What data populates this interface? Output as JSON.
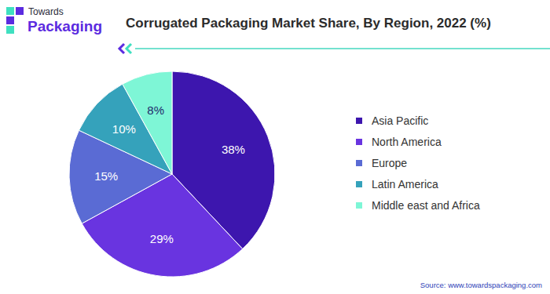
{
  "logo": {
    "line1": "Towards",
    "line2": "Packaging"
  },
  "source": "Source: www.towardspackaging.com",
  "chart_data": {
    "type": "pie",
    "title": "Corrugated Packaging Market Share, By Region, 2022 (%)",
    "categories": [
      "Asia Pacific",
      "North America",
      "Europe",
      "Latin America",
      "Middle east and Africa"
    ],
    "values": [
      38,
      29,
      15,
      10,
      8
    ],
    "value_labels": [
      "38%",
      "29%",
      "15%",
      "10%",
      "8%"
    ],
    "colors": [
      "#3d16ae",
      "#6934e0",
      "#5a6bd4",
      "#35a2bb",
      "#7ef6d6"
    ],
    "data_labels": true,
    "legend": "right"
  }
}
